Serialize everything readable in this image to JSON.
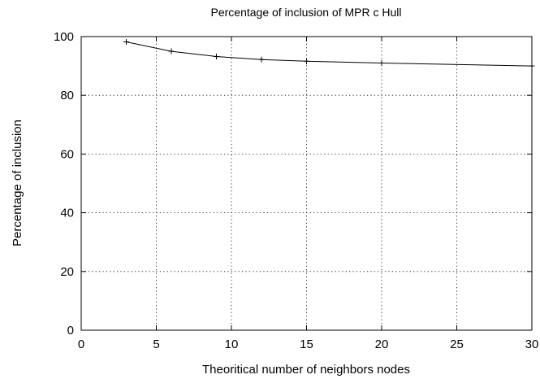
{
  "chart_data": {
    "type": "line",
    "title": "Percentage of inclusion of MPR c Hull",
    "xlabel": "Theoritical number of neighbors nodes",
    "ylabel": "Percentage of inclusion",
    "xlim": [
      0,
      30
    ],
    "ylim": [
      0,
      100
    ],
    "xticks": [
      0,
      5,
      10,
      15,
      20,
      25,
      30
    ],
    "yticks": [
      0,
      20,
      40,
      60,
      80,
      100
    ],
    "grid": true,
    "series": [
      {
        "x": [
          3,
          6,
          9,
          12,
          15,
          20,
          30
        ],
        "y": [
          98.2,
          95.0,
          93.2,
          92.2,
          91.6,
          91.0,
          90.0
        ]
      }
    ]
  }
}
